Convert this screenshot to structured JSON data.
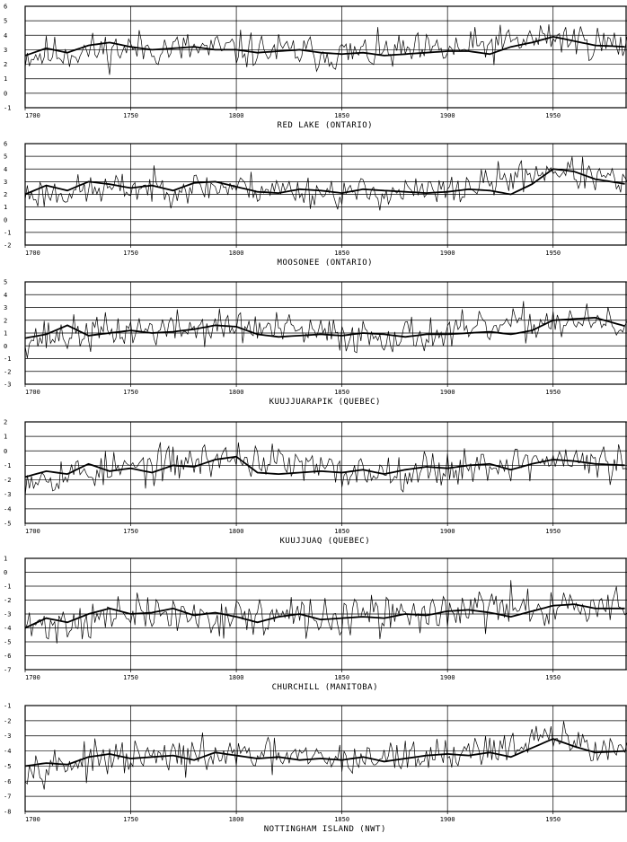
{
  "x_axis": {
    "min": 1700,
    "max": 1985,
    "ticks": [
      1700,
      1750,
      1800,
      1850,
      1900,
      1950
    ],
    "tick_labels": [
      "1700",
      "1750",
      "1800",
      "1850",
      "1900",
      "1950"
    ]
  },
  "chart_data": [
    {
      "type": "line",
      "title": "RED LAKE (ONTARIO)",
      "ylim": [
        -1,
        6
      ],
      "yticks": [
        -1,
        0,
        1,
        2,
        3,
        4,
        5,
        6
      ],
      "series": [
        {
          "kind": "annual",
          "mean": 3.0,
          "amp": 0.9,
          "seed": 11,
          "x": [
            1700,
            1750,
            1800,
            1850,
            1900,
            1950,
            1985
          ],
          "y": [
            2.6,
            3.1,
            3.0,
            2.7,
            2.9,
            3.9,
            3.2
          ]
        },
        {
          "kind": "smoothed",
          "x": [
            1700,
            1710,
            1720,
            1730,
            1740,
            1750,
            1760,
            1770,
            1780,
            1790,
            1800,
            1810,
            1820,
            1830,
            1840,
            1850,
            1860,
            1870,
            1880,
            1890,
            1900,
            1910,
            1920,
            1930,
            1940,
            1950,
            1960,
            1970,
            1985
          ],
          "y": [
            2.6,
            3.1,
            2.8,
            3.3,
            3.5,
            3.2,
            3.0,
            3.1,
            3.2,
            3.0,
            3.0,
            2.8,
            2.9,
            3.0,
            2.8,
            2.7,
            2.8,
            2.6,
            2.7,
            2.8,
            2.9,
            2.9,
            2.7,
            3.2,
            3.5,
            3.9,
            3.6,
            3.3,
            3.2
          ]
        }
      ]
    },
    {
      "type": "line",
      "title": "MOOSONEE (ONTARIO)",
      "ylim": [
        -2,
        6
      ],
      "yticks": [
        -2,
        -1,
        0,
        1,
        2,
        3,
        4,
        5,
        6
      ],
      "series": [
        {
          "kind": "annual",
          "mean": 2.4,
          "amp": 0.9,
          "seed": 23,
          "x": [
            1700,
            1750,
            1800,
            1850,
            1900,
            1950,
            1985
          ],
          "y": [
            2.0,
            2.5,
            2.6,
            2.1,
            2.2,
            4.0,
            2.8
          ]
        },
        {
          "kind": "smoothed",
          "x": [
            1700,
            1710,
            1720,
            1730,
            1740,
            1750,
            1760,
            1770,
            1780,
            1790,
            1800,
            1810,
            1820,
            1830,
            1840,
            1850,
            1860,
            1870,
            1880,
            1890,
            1900,
            1910,
            1920,
            1930,
            1940,
            1950,
            1960,
            1970,
            1985
          ],
          "y": [
            2.0,
            2.7,
            2.3,
            3.0,
            2.8,
            2.5,
            2.7,
            2.3,
            2.9,
            3.0,
            2.6,
            2.2,
            2.1,
            2.4,
            2.3,
            2.1,
            2.4,
            2.3,
            2.2,
            2.1,
            2.2,
            2.4,
            2.3,
            2.0,
            2.8,
            4.0,
            3.8,
            3.2,
            2.8
          ]
        }
      ]
    },
    {
      "type": "line",
      "title": "KUUJJUARAPIK (QUEBEC)",
      "ylim": [
        -3,
        5
      ],
      "yticks": [
        -3,
        -2,
        -1,
        0,
        1,
        2,
        3,
        4,
        5
      ],
      "series": [
        {
          "kind": "annual",
          "mean": 0.9,
          "amp": 1.0,
          "seed": 37,
          "x": [
            1700,
            1750,
            1800,
            1850,
            1900,
            1950,
            1985
          ],
          "y": [
            0.6,
            1.2,
            1.5,
            0.8,
            0.9,
            2.0,
            1.5
          ]
        },
        {
          "kind": "smoothed",
          "x": [
            1700,
            1710,
            1720,
            1730,
            1740,
            1750,
            1760,
            1770,
            1780,
            1790,
            1800,
            1810,
            1820,
            1830,
            1840,
            1850,
            1860,
            1870,
            1880,
            1890,
            1900,
            1910,
            1920,
            1930,
            1940,
            1950,
            1960,
            1970,
            1985
          ],
          "y": [
            0.6,
            0.9,
            1.6,
            0.8,
            1.0,
            1.2,
            1.0,
            1.1,
            1.3,
            1.6,
            1.5,
            0.9,
            0.7,
            0.8,
            0.9,
            0.8,
            1.0,
            0.9,
            0.7,
            0.9,
            0.9,
            1.0,
            1.1,
            0.9,
            1.2,
            2.0,
            2.1,
            2.2,
            1.5
          ]
        }
      ]
    },
    {
      "type": "line",
      "title": "KUUJJUAQ (QUEBEC)",
      "ylim": [
        -5,
        2
      ],
      "yticks": [
        -5,
        -4,
        -3,
        -2,
        -1,
        0,
        1,
        2
      ],
      "series": [
        {
          "kind": "annual",
          "mean": -1.3,
          "amp": 0.9,
          "seed": 53,
          "x": [
            1700,
            1750,
            1800,
            1850,
            1900,
            1950,
            1985
          ],
          "y": [
            -1.8,
            -1.2,
            -0.4,
            -1.5,
            -1.2,
            -0.6,
            -1.0
          ]
        },
        {
          "kind": "smoothed",
          "x": [
            1700,
            1710,
            1720,
            1730,
            1740,
            1750,
            1760,
            1770,
            1780,
            1790,
            1800,
            1810,
            1820,
            1830,
            1840,
            1850,
            1860,
            1870,
            1880,
            1890,
            1900,
            1910,
            1920,
            1930,
            1940,
            1950,
            1960,
            1970,
            1985
          ],
          "y": [
            -1.8,
            -1.4,
            -1.6,
            -0.9,
            -1.4,
            -1.2,
            -1.5,
            -1.0,
            -1.1,
            -0.6,
            -0.4,
            -1.5,
            -1.6,
            -1.5,
            -1.4,
            -1.5,
            -1.3,
            -1.6,
            -1.3,
            -1.1,
            -1.2,
            -1.0,
            -0.9,
            -1.3,
            -0.9,
            -0.6,
            -0.7,
            -0.9,
            -1.0
          ]
        }
      ]
    },
    {
      "type": "line",
      "title": "CHURCHILL (MANITOBA)",
      "ylim": [
        -7,
        1
      ],
      "yticks": [
        -7,
        -6,
        -5,
        -4,
        -3,
        -2,
        -1,
        0,
        1
      ],
      "series": [
        {
          "kind": "annual",
          "mean": -3.1,
          "amp": 1.0,
          "seed": 71,
          "x": [
            1700,
            1750,
            1800,
            1850,
            1900,
            1950,
            1985
          ],
          "y": [
            -4.0,
            -3.0,
            -3.2,
            -3.3,
            -2.8,
            -2.4,
            -2.6
          ]
        },
        {
          "kind": "smoothed",
          "x": [
            1700,
            1710,
            1720,
            1730,
            1740,
            1750,
            1760,
            1770,
            1780,
            1790,
            1800,
            1810,
            1820,
            1830,
            1840,
            1850,
            1860,
            1870,
            1880,
            1890,
            1900,
            1910,
            1920,
            1930,
            1940,
            1950,
            1960,
            1970,
            1985
          ],
          "y": [
            -4.0,
            -3.3,
            -3.6,
            -3.0,
            -2.6,
            -3.0,
            -2.9,
            -2.6,
            -3.1,
            -2.9,
            -3.2,
            -3.6,
            -3.2,
            -3.0,
            -3.4,
            -3.3,
            -3.2,
            -3.3,
            -3.0,
            -3.1,
            -2.8,
            -2.7,
            -2.9,
            -3.2,
            -2.8,
            -2.4,
            -2.3,
            -2.6,
            -2.6
          ]
        }
      ]
    },
    {
      "type": "line",
      "title": "NOTTINGHAM ISLAND (NWT)",
      "ylim": [
        -8,
        -1
      ],
      "yticks": [
        -8,
        -7,
        -6,
        -5,
        -4,
        -3,
        -2,
        -1
      ],
      "series": [
        {
          "kind": "annual",
          "mean": -4.5,
          "amp": 0.8,
          "seed": 97,
          "x": [
            1700,
            1750,
            1800,
            1850,
            1900,
            1950,
            1985
          ],
          "y": [
            -5.0,
            -4.5,
            -4.3,
            -4.6,
            -4.2,
            -3.2,
            -4.0
          ]
        },
        {
          "kind": "smoothed",
          "x": [
            1700,
            1710,
            1720,
            1730,
            1740,
            1750,
            1760,
            1770,
            1780,
            1790,
            1800,
            1810,
            1820,
            1830,
            1840,
            1850,
            1860,
            1870,
            1880,
            1890,
            1900,
            1910,
            1920,
            1930,
            1940,
            1950,
            1960,
            1970,
            1985
          ],
          "y": [
            -5.0,
            -4.8,
            -4.9,
            -4.4,
            -4.2,
            -4.5,
            -4.4,
            -4.3,
            -4.6,
            -4.1,
            -4.3,
            -4.5,
            -4.4,
            -4.6,
            -4.5,
            -4.6,
            -4.4,
            -4.7,
            -4.5,
            -4.3,
            -4.2,
            -4.3,
            -4.1,
            -4.4,
            -3.8,
            -3.2,
            -3.7,
            -4.1,
            -4.0
          ]
        }
      ]
    }
  ]
}
